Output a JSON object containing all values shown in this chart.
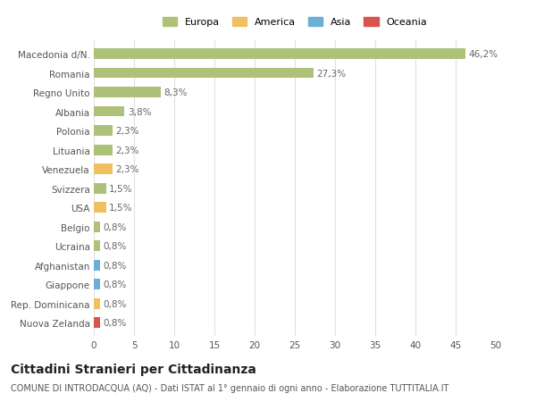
{
  "categories": [
    "Macedonia d/N.",
    "Romania",
    "Regno Unito",
    "Albania",
    "Polonia",
    "Lituania",
    "Venezuela",
    "Svizzera",
    "USA",
    "Belgio",
    "Ucraina",
    "Afghanistan",
    "Giappone",
    "Rep. Dominicana",
    "Nuova Zelanda"
  ],
  "values": [
    46.2,
    27.3,
    8.3,
    3.8,
    2.3,
    2.3,
    2.3,
    1.5,
    1.5,
    0.8,
    0.8,
    0.8,
    0.8,
    0.8,
    0.8
  ],
  "labels": [
    "46,2%",
    "27,3%",
    "8,3%",
    "3,8%",
    "2,3%",
    "2,3%",
    "2,3%",
    "1,5%",
    "1,5%",
    "0,8%",
    "0,8%",
    "0,8%",
    "0,8%",
    "0,8%",
    "0,8%"
  ],
  "colors": [
    "#adc178",
    "#adc178",
    "#adc178",
    "#adc178",
    "#adc178",
    "#adc178",
    "#f0c060",
    "#adc178",
    "#f0c060",
    "#adc178",
    "#adc178",
    "#6baed6",
    "#6baed6",
    "#f0c060",
    "#d9534f"
  ],
  "legend_labels": [
    "Europa",
    "America",
    "Asia",
    "Oceania"
  ],
  "legend_colors": [
    "#adc178",
    "#f0c060",
    "#6baed6",
    "#d9534f"
  ],
  "xlim": [
    0,
    50
  ],
  "xticks": [
    0,
    5,
    10,
    15,
    20,
    25,
    30,
    35,
    40,
    45,
    50
  ],
  "title": "Cittadini Stranieri per Cittadinanza",
  "subtitle": "COMUNE DI INTRODACQUA (AQ) - Dati ISTAT al 1° gennaio di ogni anno - Elaborazione TUTTITALIA.IT",
  "bg_color": "#ffffff",
  "grid_color": "#e0e0e0",
  "bar_height": 0.55,
  "label_fontsize": 7.5,
  "tick_fontsize": 7.5,
  "title_fontsize": 10,
  "subtitle_fontsize": 7
}
